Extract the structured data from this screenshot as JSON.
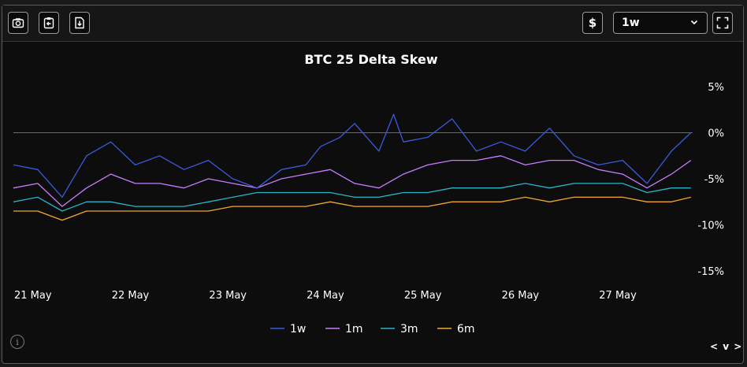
{
  "toolbar": {
    "currency_label": "$",
    "tenor_select": {
      "selected": "1w"
    },
    "icons": [
      "camera-icon",
      "clipboard-copy-icon",
      "download-icon",
      "dollar-icon",
      "chevron-down-icon",
      "fullscreen-icon"
    ]
  },
  "footer": {
    "info_label": "i",
    "nav_label": "< v >"
  },
  "colors": {
    "background": "#0d0d0d",
    "1w": "#3b5bdb",
    "1m": "#c77dff",
    "3m": "#2bb3c8",
    "6m": "#f0a830",
    "text": "#ffffff",
    "zero_line": "#6a6a6a"
  },
  "chart_data": {
    "type": "line",
    "title": "BTC 25 Delta Skew",
    "xlabel": "",
    "ylabel": "",
    "x_ticks": [
      "21 May",
      "22 May",
      "23 May",
      "24 May",
      "25 May",
      "26 May",
      "27 May"
    ],
    "y_ticks": [
      "5%",
      "0%",
      "-5%",
      "-10%",
      "-15%"
    ],
    "y_tick_values": [
      5,
      0,
      -5,
      -10,
      -15
    ],
    "ylim": [
      -15,
      5
    ],
    "x_range_days": [
      0,
      7
    ],
    "legend_position": "bottom-center",
    "grid": false,
    "series": [
      {
        "name": "1w",
        "x": [
          0.0,
          0.25,
          0.5,
          0.75,
          1.0,
          1.25,
          1.5,
          1.75,
          2.0,
          2.25,
          2.5,
          2.75,
          3.0,
          3.15,
          3.35,
          3.5,
          3.75,
          3.9,
          4.0,
          4.25,
          4.5,
          4.75,
          5.0,
          5.25,
          5.5,
          5.75,
          6.0,
          6.25,
          6.5,
          6.75,
          6.95
        ],
        "values": [
          -3.5,
          -4.0,
          -7.0,
          -2.5,
          -1.0,
          -3.5,
          -2.5,
          -4.0,
          -3.0,
          -5.0,
          -6.0,
          -4.0,
          -3.5,
          -1.5,
          -0.5,
          1.0,
          -2.0,
          2.0,
          -1.0,
          -0.5,
          1.5,
          -2.0,
          -1.0,
          -2.0,
          0.5,
          -2.5,
          -3.5,
          -3.0,
          -5.5,
          -2.0,
          0.0
        ]
      },
      {
        "name": "1m",
        "x": [
          0.0,
          0.25,
          0.5,
          0.75,
          1.0,
          1.25,
          1.5,
          1.75,
          2.0,
          2.25,
          2.5,
          2.75,
          3.0,
          3.25,
          3.5,
          3.75,
          4.0,
          4.25,
          4.5,
          4.75,
          5.0,
          5.25,
          5.5,
          5.75,
          6.0,
          6.25,
          6.5,
          6.75,
          6.95
        ],
        "values": [
          -6.0,
          -5.5,
          -8.0,
          -6.0,
          -4.5,
          -5.5,
          -5.5,
          -6.0,
          -5.0,
          -5.5,
          -6.0,
          -5.0,
          -4.5,
          -4.0,
          -5.5,
          -6.0,
          -4.5,
          -3.5,
          -3.0,
          -3.0,
          -2.5,
          -3.5,
          -3.0,
          -3.0,
          -4.0,
          -4.5,
          -6.0,
          -4.5,
          -3.0
        ]
      },
      {
        "name": "3m",
        "x": [
          0.0,
          0.25,
          0.5,
          0.75,
          1.0,
          1.25,
          1.5,
          1.75,
          2.0,
          2.25,
          2.5,
          2.75,
          3.0,
          3.25,
          3.5,
          3.75,
          4.0,
          4.25,
          4.5,
          4.75,
          5.0,
          5.25,
          5.5,
          5.75,
          6.0,
          6.25,
          6.5,
          6.75,
          6.95
        ],
        "values": [
          -7.5,
          -7.0,
          -8.5,
          -7.5,
          -7.5,
          -8.0,
          -8.0,
          -8.0,
          -7.5,
          -7.0,
          -6.5,
          -6.5,
          -6.5,
          -6.5,
          -7.0,
          -7.0,
          -6.5,
          -6.5,
          -6.0,
          -6.0,
          -6.0,
          -5.5,
          -6.0,
          -5.5,
          -5.5,
          -5.5,
          -6.5,
          -6.0,
          -6.0
        ]
      },
      {
        "name": "6m",
        "x": [
          0.0,
          0.25,
          0.5,
          0.75,
          1.0,
          1.25,
          1.5,
          1.75,
          2.0,
          2.25,
          2.5,
          2.75,
          3.0,
          3.25,
          3.5,
          3.75,
          4.0,
          4.25,
          4.5,
          4.75,
          5.0,
          5.25,
          5.5,
          5.75,
          6.0,
          6.25,
          6.5,
          6.75,
          6.95
        ],
        "values": [
          -8.5,
          -8.5,
          -9.5,
          -8.5,
          -8.5,
          -8.5,
          -8.5,
          -8.5,
          -8.5,
          -8.0,
          -8.0,
          -8.0,
          -8.0,
          -7.5,
          -8.0,
          -8.0,
          -8.0,
          -8.0,
          -7.5,
          -7.5,
          -7.5,
          -7.0,
          -7.5,
          -7.0,
          -7.0,
          -7.0,
          -7.5,
          -7.5,
          -7.0
        ]
      }
    ]
  }
}
